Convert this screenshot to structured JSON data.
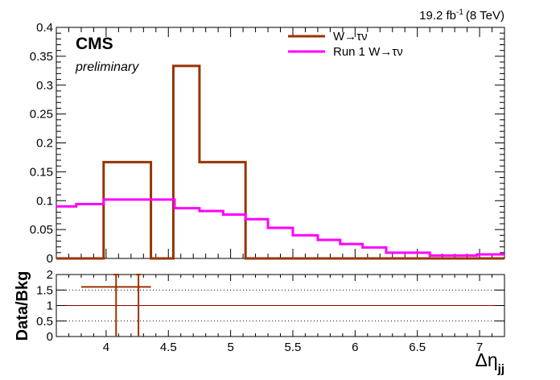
{
  "chart_data": [
    {
      "type": "line",
      "title": "",
      "annotations": {
        "lumi_value": "19.2 fb",
        "lumi_exp": "-1",
        "lumi_energy": "(8 TeV)",
        "experiment": "CMS",
        "status": "preliminary"
      },
      "xlabel": "",
      "ylabel": "",
      "xlim": [
        3.6,
        7.2
      ],
      "ylim": [
        0,
        0.4
      ],
      "yticks": [
        "0",
        "0.05",
        "0.1",
        "0.15",
        "0.2",
        "0.25",
        "0.3",
        "0.35",
        "0.4"
      ],
      "legend_position": "top-right",
      "series": [
        {
          "name": "W→τν",
          "color": "#993300",
          "edges": [
            3.6,
            3.98,
            4.36,
            4.54,
            4.75,
            5.12,
            7.2
          ],
          "values": [
            0,
            0.1667,
            0,
            0.3333,
            0.1667,
            0
          ]
        },
        {
          "name": "Run 1 W→τν",
          "color": "#ff00ff",
          "edges": [
            3.6,
            3.76,
            3.98,
            4.55,
            4.75,
            4.94,
            5.12,
            5.3,
            5.5,
            5.7,
            5.88,
            6.06,
            6.25,
            6.6,
            6.98,
            7.2
          ],
          "values": [
            0.09,
            0.094,
            0.102,
            0.087,
            0.082,
            0.076,
            0.068,
            0.053,
            0.04,
            0.032,
            0.025,
            0.019,
            0.01,
            0.005,
            0.007
          ]
        }
      ]
    },
    {
      "type": "scatter",
      "xlabel": "Δη",
      "xlabel_sub": "jj",
      "ylabel": "Data/Bkg",
      "xlim": [
        3.6,
        7.2
      ],
      "ylim": [
        0,
        2
      ],
      "xticks": [
        "4",
        "4.5",
        "5",
        "5.5",
        "6",
        "6.5",
        "7"
      ],
      "yticks": [
        "0",
        "0.5",
        "1",
        "1.5",
        "2"
      ],
      "reference_line": 1,
      "dotted_lines": [
        0.5,
        1.5
      ],
      "points": [
        {
          "x": 4.08,
          "y": 1.6,
          "xerr": [
            0.28,
            0.08
          ],
          "yerr": [
            1.6,
            0.4
          ]
        },
        {
          "x": 4.26,
          "y": 1.6,
          "xerr": [
            0.1,
            0.1
          ],
          "yerr": [
            1.6,
            0.4
          ]
        }
      ],
      "colors": {
        "points": "#993300",
        "reference_line": "#990000"
      }
    }
  ]
}
